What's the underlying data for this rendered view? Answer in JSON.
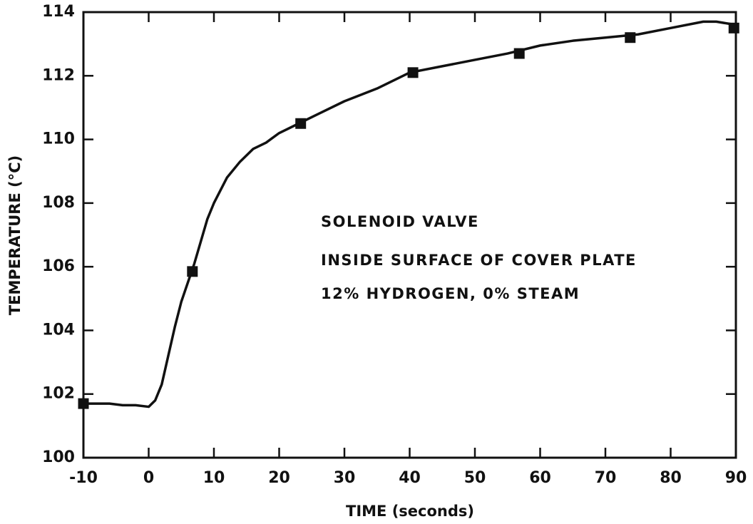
{
  "chart_data": {
    "type": "line",
    "xlabel": "TIME (seconds)",
    "ylabel": "TEMPERATURE (°C)",
    "annotations": [
      "SOLENOID VALVE",
      "INSIDE SURFACE OF COVER PLATE",
      "12% HYDROGEN, 0% STEAM"
    ],
    "xlim": [
      -10,
      90
    ],
    "ylim": [
      100,
      114
    ],
    "xticks": [
      -10,
      0,
      10,
      20,
      30,
      40,
      50,
      60,
      70,
      80,
      90
    ],
    "yticks": [
      100,
      102,
      104,
      106,
      108,
      110,
      112,
      114
    ],
    "series": [
      {
        "mode": "line",
        "color": "#111111",
        "x": [
          -10,
          -8,
          -6,
          -4,
          -2,
          0,
          1,
          2,
          3,
          4,
          5,
          6,
          7,
          8,
          9,
          10,
          12,
          14,
          16,
          18,
          20,
          23,
          26,
          30,
          35,
          40,
          45,
          50,
          55,
          60,
          65,
          70,
          75,
          80,
          85,
          87,
          90
        ],
        "values": [
          101.7,
          101.7,
          101.7,
          101.65,
          101.65,
          101.6,
          101.8,
          102.3,
          103.2,
          104.1,
          104.9,
          105.5,
          106.1,
          106.8,
          107.5,
          108.0,
          108.8,
          109.3,
          109.7,
          109.9,
          110.2,
          110.5,
          110.8,
          111.2,
          111.6,
          112.1,
          112.3,
          112.5,
          112.7,
          112.95,
          113.1,
          113.2,
          113.3,
          113.5,
          113.7,
          113.7,
          113.6
        ]
      },
      {
        "mode": "markers",
        "marker": "square",
        "color": "#111111",
        "x": [
          -10,
          6.7,
          23.3,
          40.5,
          56.8,
          73.8,
          89.7
        ],
        "values": [
          101.7,
          105.85,
          110.5,
          112.1,
          112.7,
          113.2,
          113.5
        ]
      }
    ]
  }
}
